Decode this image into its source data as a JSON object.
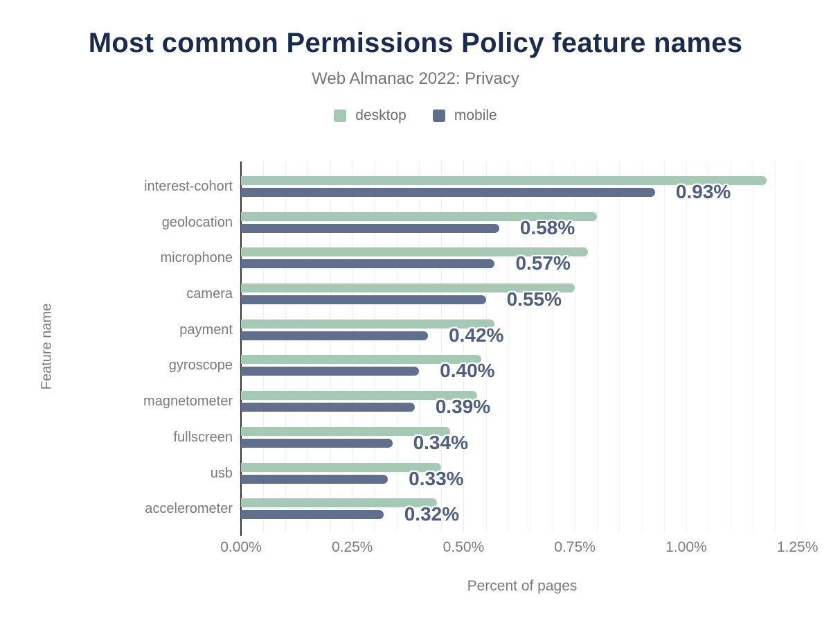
{
  "header": {
    "title": "Most common Permissions Policy feature names",
    "subtitle": "Web Almanac 2022: Privacy"
  },
  "legend": [
    {
      "label": "desktop",
      "color": "#a6c9b6"
    },
    {
      "label": "mobile",
      "color": "#5f6f8d"
    }
  ],
  "chart_data": {
    "type": "bar",
    "orientation": "horizontal",
    "title": "Most common Permissions Policy feature names",
    "subtitle": "Web Almanac 2022: Privacy",
    "categories": [
      "interest-cohort",
      "geolocation",
      "microphone",
      "camera",
      "payment",
      "gyroscope",
      "magnetometer",
      "fullscreen",
      "usb",
      "accelerometer"
    ],
    "series": [
      {
        "name": "desktop",
        "color": "#a6c9b6",
        "values": [
          1.18,
          0.8,
          0.78,
          0.75,
          0.57,
          0.54,
          0.53,
          0.47,
          0.45,
          0.44
        ]
      },
      {
        "name": "mobile",
        "color": "#5f6f8d",
        "values": [
          0.93,
          0.58,
          0.57,
          0.55,
          0.42,
          0.4,
          0.39,
          0.34,
          0.33,
          0.32
        ]
      }
    ],
    "value_labels": [
      "0.93%",
      "0.58%",
      "0.57%",
      "0.55%",
      "0.42%",
      "0.40%",
      "0.39%",
      "0.34%",
      "0.33%",
      "0.32%"
    ],
    "value_labels_series": "mobile",
    "xlabel": "Percent of pages",
    "ylabel": "Feature name",
    "x_ticks": [
      "0.00%",
      "0.25%",
      "0.50%",
      "0.75%",
      "1.00%",
      "1.25%"
    ],
    "x_tick_values": [
      0,
      0.25,
      0.5,
      0.75,
      1.0,
      1.25
    ],
    "xlim": [
      0,
      1.263
    ],
    "grid_step": 0.05,
    "grid": true,
    "legend_position": "top"
  },
  "colors": {
    "title": "#1b2b4c",
    "subtitle": "#757575",
    "axis_text": "#7a7a7a",
    "desktop_bar": "#a6c9b6",
    "mobile_bar": "#5f6f8d",
    "value_label": "#4d5e80",
    "gridline": "#f1f1f3",
    "axis_line": "#32323a",
    "background": "#ffffff"
  }
}
